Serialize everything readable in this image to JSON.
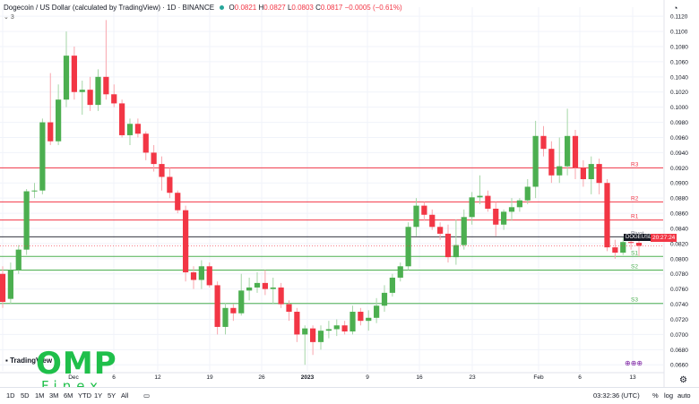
{
  "legend": {
    "title": "Dogecoin / US Dollar (calculated by TradingView) · 1D · BINANCE",
    "o_label": "O",
    "o": "0.0821",
    "h_label": "H",
    "h": "0.0827",
    "l_label": "L",
    "l": "0.0803",
    "c_label": "C",
    "c": "0.0817",
    "change": "−0.0005 (−0.61%)",
    "indicator_count": "3"
  },
  "price_badge": {
    "symbol": "DOGEUSD",
    "value": "20:27:24"
  },
  "pivot_labels": [
    "R3",
    "R2",
    "R1",
    "Pivot",
    "S1",
    "S2",
    "S3"
  ],
  "logo": {
    "main": "OMP",
    "sub": "Finex"
  },
  "tradingview_label": "TradingView",
  "bottom_bar": {
    "timeframes": [
      "1D",
      "5D",
      "1M",
      "3M",
      "6M",
      "YTD",
      "1Y",
      "5Y",
      "All"
    ],
    "time": "03:32:36 (UTC)",
    "percent": "%",
    "log": "log",
    "auto": "auto"
  },
  "colors": {
    "up": "#26a69a",
    "up_candle": "#4caf50",
    "down": "#f23645",
    "resistance": "#f23645",
    "support": "#4caf50",
    "pivot": "#131722"
  },
  "chart_data": {
    "type": "candlestick",
    "title": "Dogecoin / US Dollar (calculated by TradingView) · 1D · BINANCE",
    "y_ticks": [
      0.112,
      0.11,
      0.108,
      0.106,
      0.104,
      0.102,
      0.1,
      0.098,
      0.096,
      0.094,
      0.092,
      0.09,
      0.088,
      0.086,
      0.084,
      0.082,
      0.08,
      0.078,
      0.076,
      0.074,
      0.072,
      0.07,
      0.068,
      0.066
    ],
    "ylim": [
      0.0652,
      0.1132
    ],
    "x_tick_labels": [
      "Dec",
      "6",
      "12",
      "19",
      "26",
      "2023",
      "9",
      "16",
      "23",
      "Feb",
      "6",
      "13"
    ],
    "pivots": [
      {
        "name": "R3",
        "value": 0.092
      },
      {
        "name": "R2",
        "value": 0.0875
      },
      {
        "name": "R1",
        "value": 0.0851
      },
      {
        "name": "Pivot",
        "value": 0.0829
      },
      {
        "name": "S1",
        "value": 0.0803
      },
      {
        "name": "S2",
        "value": 0.0785
      },
      {
        "name": "S3",
        "value": 0.0741
      }
    ],
    "candles": [
      {
        "o": 0.078,
        "h": 0.079,
        "l": 0.0735,
        "c": 0.0743
      },
      {
        "o": 0.0747,
        "h": 0.0795,
        "l": 0.074,
        "c": 0.0785
      },
      {
        "o": 0.0785,
        "h": 0.0818,
        "l": 0.078,
        "c": 0.0812
      },
      {
        "o": 0.0812,
        "h": 0.0892,
        "l": 0.0805,
        "c": 0.0889
      },
      {
        "o": 0.0889,
        "h": 0.09,
        "l": 0.088,
        "c": 0.089
      },
      {
        "o": 0.089,
        "h": 0.0985,
        "l": 0.0885,
        "c": 0.098
      },
      {
        "o": 0.098,
        "h": 0.1045,
        "l": 0.095,
        "c": 0.0955
      },
      {
        "o": 0.0955,
        "h": 0.103,
        "l": 0.095,
        "c": 0.101
      },
      {
        "o": 0.101,
        "h": 0.11,
        "l": 0.1,
        "c": 0.1068
      },
      {
        "o": 0.1068,
        "h": 0.108,
        "l": 0.101,
        "c": 0.102
      },
      {
        "o": 0.102,
        "h": 0.1035,
        "l": 0.099,
        "c": 0.1023
      },
      {
        "o": 0.1023,
        "h": 0.104,
        "l": 0.0995,
        "c": 0.1003
      },
      {
        "o": 0.1003,
        "h": 0.105,
        "l": 0.0995,
        "c": 0.104
      },
      {
        "o": 0.104,
        "h": 0.1115,
        "l": 0.101,
        "c": 0.1017
      },
      {
        "o": 0.1017,
        "h": 0.103,
        "l": 0.1,
        "c": 0.1005
      },
      {
        "o": 0.1005,
        "h": 0.101,
        "l": 0.096,
        "c": 0.0963
      },
      {
        "o": 0.0963,
        "h": 0.0985,
        "l": 0.095,
        "c": 0.0978
      },
      {
        "o": 0.0978,
        "h": 0.0985,
        "l": 0.096,
        "c": 0.0965
      },
      {
        "o": 0.0965,
        "h": 0.0968,
        "l": 0.093,
        "c": 0.094
      },
      {
        "o": 0.094,
        "h": 0.095,
        "l": 0.0915,
        "c": 0.0925
      },
      {
        "o": 0.0925,
        "h": 0.0935,
        "l": 0.089,
        "c": 0.0908
      },
      {
        "o": 0.0908,
        "h": 0.092,
        "l": 0.088,
        "c": 0.0887
      },
      {
        "o": 0.0887,
        "h": 0.089,
        "l": 0.086,
        "c": 0.0864
      },
      {
        "o": 0.0864,
        "h": 0.087,
        "l": 0.077,
        "c": 0.0782
      },
      {
        "o": 0.0782,
        "h": 0.079,
        "l": 0.076,
        "c": 0.0772
      },
      {
        "o": 0.0772,
        "h": 0.0798,
        "l": 0.076,
        "c": 0.079
      },
      {
        "o": 0.079,
        "h": 0.0795,
        "l": 0.0762,
        "c": 0.0765
      },
      {
        "o": 0.0765,
        "h": 0.077,
        "l": 0.07,
        "c": 0.071
      },
      {
        "o": 0.071,
        "h": 0.0742,
        "l": 0.07,
        "c": 0.0735
      },
      {
        "o": 0.0735,
        "h": 0.074,
        "l": 0.0718,
        "c": 0.0728
      },
      {
        "o": 0.0728,
        "h": 0.078,
        "l": 0.0725,
        "c": 0.0758
      },
      {
        "o": 0.0758,
        "h": 0.0775,
        "l": 0.0745,
        "c": 0.0762
      },
      {
        "o": 0.0762,
        "h": 0.0782,
        "l": 0.0755,
        "c": 0.0768
      },
      {
        "o": 0.0768,
        "h": 0.0785,
        "l": 0.0752,
        "c": 0.076
      },
      {
        "o": 0.076,
        "h": 0.0775,
        "l": 0.074,
        "c": 0.0762
      },
      {
        "o": 0.0762,
        "h": 0.0768,
        "l": 0.0735,
        "c": 0.074
      },
      {
        "o": 0.074,
        "h": 0.0745,
        "l": 0.0718,
        "c": 0.073
      },
      {
        "o": 0.073,
        "h": 0.0735,
        "l": 0.069,
        "c": 0.07
      },
      {
        "o": 0.07,
        "h": 0.0712,
        "l": 0.066,
        "c": 0.0708
      },
      {
        "o": 0.0708,
        "h": 0.0712,
        "l": 0.0673,
        "c": 0.069
      },
      {
        "o": 0.069,
        "h": 0.0712,
        "l": 0.068,
        "c": 0.0705
      },
      {
        "o": 0.0705,
        "h": 0.0718,
        "l": 0.0695,
        "c": 0.0707
      },
      {
        "o": 0.0707,
        "h": 0.072,
        "l": 0.0698,
        "c": 0.0712
      },
      {
        "o": 0.0712,
        "h": 0.0718,
        "l": 0.07,
        "c": 0.0704
      },
      {
        "o": 0.0704,
        "h": 0.0738,
        "l": 0.07,
        "c": 0.073
      },
      {
        "o": 0.073,
        "h": 0.0735,
        "l": 0.0712,
        "c": 0.0718
      },
      {
        "o": 0.0718,
        "h": 0.0732,
        "l": 0.0705,
        "c": 0.0722
      },
      {
        "o": 0.0722,
        "h": 0.0748,
        "l": 0.0715,
        "c": 0.0738
      },
      {
        "o": 0.0738,
        "h": 0.0765,
        "l": 0.073,
        "c": 0.0755
      },
      {
        "o": 0.0755,
        "h": 0.078,
        "l": 0.075,
        "c": 0.0775
      },
      {
        "o": 0.0775,
        "h": 0.0795,
        "l": 0.077,
        "c": 0.079
      },
      {
        "o": 0.079,
        "h": 0.0848,
        "l": 0.0785,
        "c": 0.0842
      },
      {
        "o": 0.0842,
        "h": 0.088,
        "l": 0.083,
        "c": 0.087
      },
      {
        "o": 0.087,
        "h": 0.0875,
        "l": 0.085,
        "c": 0.0858
      },
      {
        "o": 0.0858,
        "h": 0.0865,
        "l": 0.0838,
        "c": 0.0842
      },
      {
        "o": 0.0842,
        "h": 0.0848,
        "l": 0.0825,
        "c": 0.0833
      },
      {
        "o": 0.0833,
        "h": 0.0845,
        "l": 0.0795,
        "c": 0.0802
      },
      {
        "o": 0.0802,
        "h": 0.0852,
        "l": 0.0792,
        "c": 0.0818
      },
      {
        "o": 0.0818,
        "h": 0.0865,
        "l": 0.0812,
        "c": 0.0855
      },
      {
        "o": 0.0855,
        "h": 0.0888,
        "l": 0.0845,
        "c": 0.0881
      },
      {
        "o": 0.0881,
        "h": 0.091,
        "l": 0.0872,
        "c": 0.0883
      },
      {
        "o": 0.0883,
        "h": 0.089,
        "l": 0.0862,
        "c": 0.0866
      },
      {
        "o": 0.0866,
        "h": 0.0875,
        "l": 0.083,
        "c": 0.0845
      },
      {
        "o": 0.0845,
        "h": 0.0865,
        "l": 0.0838,
        "c": 0.0862
      },
      {
        "o": 0.0862,
        "h": 0.088,
        "l": 0.085,
        "c": 0.0868
      },
      {
        "o": 0.0868,
        "h": 0.088,
        "l": 0.0862,
        "c": 0.0877
      },
      {
        "o": 0.0877,
        "h": 0.0905,
        "l": 0.0872,
        "c": 0.0895
      },
      {
        "o": 0.0895,
        "h": 0.0982,
        "l": 0.088,
        "c": 0.0962
      },
      {
        "o": 0.0962,
        "h": 0.0975,
        "l": 0.0935,
        "c": 0.0945
      },
      {
        "o": 0.0945,
        "h": 0.0955,
        "l": 0.09,
        "c": 0.091
      },
      {
        "o": 0.091,
        "h": 0.096,
        "l": 0.09,
        "c": 0.0922
      },
      {
        "o": 0.0922,
        "h": 0.0998,
        "l": 0.091,
        "c": 0.0962
      },
      {
        "o": 0.0962,
        "h": 0.097,
        "l": 0.0905,
        "c": 0.092
      },
      {
        "o": 0.092,
        "h": 0.093,
        "l": 0.0895,
        "c": 0.0905
      },
      {
        "o": 0.0905,
        "h": 0.0935,
        "l": 0.0885,
        "c": 0.0925
      },
      {
        "o": 0.0925,
        "h": 0.0932,
        "l": 0.0885,
        "c": 0.09
      },
      {
        "o": 0.09,
        "h": 0.0905,
        "l": 0.081,
        "c": 0.0815
      },
      {
        "o": 0.0815,
        "h": 0.0825,
        "l": 0.08,
        "c": 0.0808
      },
      {
        "o": 0.0808,
        "h": 0.0828,
        "l": 0.0805,
        "c": 0.0822
      },
      {
        "o": 0.0822,
        "h": 0.083,
        "l": 0.0812,
        "c": 0.0821
      },
      {
        "o": 0.0821,
        "h": 0.0827,
        "l": 0.0803,
        "c": 0.0817
      }
    ]
  }
}
